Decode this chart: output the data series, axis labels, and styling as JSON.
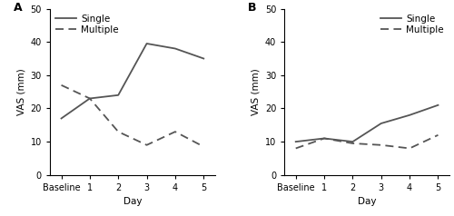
{
  "panel_A": {
    "label": "A",
    "single": [
      17,
      23,
      24,
      39.5,
      38,
      35
    ],
    "multiple": [
      27,
      23,
      13,
      9,
      13,
      8.5
    ],
    "x_labels": [
      "Baseline",
      "1",
      "2",
      "3",
      "4",
      "5"
    ],
    "ylim": [
      0,
      50
    ],
    "yticks": [
      0,
      10,
      20,
      30,
      40,
      50
    ],
    "ylabel": "VAS (mm)",
    "xlabel": "Day",
    "legend_loc": "upper left"
  },
  "panel_B": {
    "label": "B",
    "single": [
      10,
      11,
      10,
      15.5,
      18,
      21
    ],
    "multiple": [
      8,
      11,
      9.5,
      9,
      8,
      12
    ],
    "x_labels": [
      "Baseline",
      "1",
      "2",
      "3",
      "4",
      "5"
    ],
    "ylim": [
      0,
      50
    ],
    "yticks": [
      0,
      10,
      20,
      30,
      40,
      50
    ],
    "ylabel": "VAS (mm)",
    "xlabel": "Day",
    "legend_loc": "upper right"
  },
  "line_color": "#555555",
  "legend_single": "Single",
  "legend_multiple": "Multiple",
  "font_size": 7.5,
  "label_font_size": 9,
  "tick_font_size": 7
}
